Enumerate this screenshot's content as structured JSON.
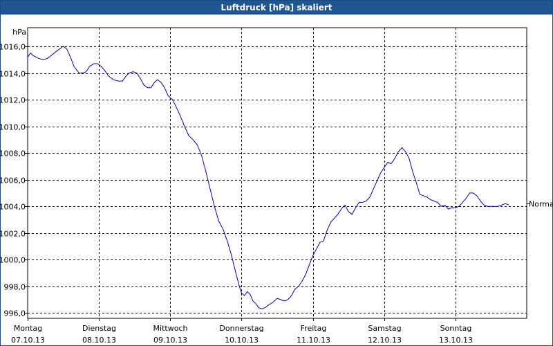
{
  "window": {
    "title": "Luftdruck [hPa] skaliert"
  },
  "chart_data": {
    "type": "line",
    "title": "Luftdruck [hPa] skaliert",
    "unit_label": "hPa",
    "ylim": [
      995.6,
      1017.4
    ],
    "xlim": [
      0,
      7.0
    ],
    "yticks": [
      996.0,
      998.0,
      1000.0,
      1002.0,
      1004.0,
      1006.0,
      1008.0,
      1010.0,
      1012.0,
      1014.0,
      1016.0
    ],
    "ytick_labels": [
      "996,0",
      "998,0",
      "1000,0",
      "1002,0",
      "1004,0",
      "1006,0",
      "1008,0",
      "1010,0",
      "1012,0",
      "1014,0",
      "1016,0"
    ],
    "x_labels": [
      {
        "day": "Montag",
        "date": "07.10.13"
      },
      {
        "day": "Dienstag",
        "date": "08.10.13"
      },
      {
        "day": "Mittwoch",
        "date": "09.10.13"
      },
      {
        "day": "Donnerstag",
        "date": "10.10.13"
      },
      {
        "day": "Freitag",
        "date": "11.10.13"
      },
      {
        "day": "Samstag",
        "date": "12.10.13"
      },
      {
        "day": "Sonntag",
        "date": "13.10.13"
      }
    ],
    "grid": true,
    "reference_line": {
      "label": "Normal",
      "value": 1004.2
    },
    "line_color": "#0000aa",
    "series": [
      {
        "values": [
          [
            0.0,
            1015.2
          ],
          [
            0.04,
            1015.5
          ],
          [
            0.08,
            1015.3
          ],
          [
            0.15,
            1015.1
          ],
          [
            0.22,
            1015.0
          ],
          [
            0.28,
            1015.1
          ],
          [
            0.35,
            1015.4
          ],
          [
            0.42,
            1015.7
          ],
          [
            0.5,
            1016.0
          ],
          [
            0.55,
            1015.8
          ],
          [
            0.6,
            1015.2
          ],
          [
            0.65,
            1014.5
          ],
          [
            0.72,
            1014.0
          ],
          [
            0.78,
            1014.0
          ],
          [
            0.82,
            1014.1
          ],
          [
            0.87,
            1014.5
          ],
          [
            0.93,
            1014.7
          ],
          [
            0.98,
            1014.7
          ],
          [
            1.03,
            1014.5
          ],
          [
            1.08,
            1014.2
          ],
          [
            1.13,
            1013.8
          ],
          [
            1.2,
            1013.5
          ],
          [
            1.27,
            1013.4
          ],
          [
            1.33,
            1013.4
          ],
          [
            1.37,
            1013.7
          ],
          [
            1.42,
            1014.0
          ],
          [
            1.48,
            1014.1
          ],
          [
            1.53,
            1014.0
          ],
          [
            1.58,
            1013.6
          ],
          [
            1.63,
            1013.1
          ],
          [
            1.68,
            1012.9
          ],
          [
            1.73,
            1012.9
          ],
          [
            1.78,
            1013.3
          ],
          [
            1.82,
            1013.5
          ],
          [
            1.87,
            1013.3
          ],
          [
            1.92,
            1012.9
          ],
          [
            1.97,
            1012.3
          ],
          [
            2.03,
            1012.0
          ],
          [
            2.08,
            1011.5
          ],
          [
            2.14,
            1010.8
          ],
          [
            2.2,
            1010.0
          ],
          [
            2.26,
            1009.3
          ],
          [
            2.32,
            1009.0
          ],
          [
            2.38,
            1008.6
          ],
          [
            2.44,
            1007.8
          ],
          [
            2.5,
            1006.6
          ],
          [
            2.56,
            1005.3
          ],
          [
            2.62,
            1004.0
          ],
          [
            2.68,
            1002.9
          ],
          [
            2.74,
            1002.3
          ],
          [
            2.8,
            1001.4
          ],
          [
            2.86,
            1000.3
          ],
          [
            2.92,
            999.0
          ],
          [
            2.97,
            998.0
          ],
          [
            3.0,
            997.5
          ],
          [
            3.04,
            997.3
          ],
          [
            3.08,
            997.6
          ],
          [
            3.12,
            997.4
          ],
          [
            3.16,
            996.9
          ],
          [
            3.2,
            996.7
          ],
          [
            3.24,
            996.4
          ],
          [
            3.28,
            996.3
          ],
          [
            3.33,
            996.4
          ],
          [
            3.38,
            996.6
          ],
          [
            3.44,
            996.8
          ],
          [
            3.5,
            997.1
          ],
          [
            3.55,
            997.0
          ],
          [
            3.6,
            996.9
          ],
          [
            3.65,
            997.0
          ],
          [
            3.7,
            997.3
          ],
          [
            3.75,
            997.8
          ],
          [
            3.8,
            998.0
          ],
          [
            3.85,
            998.4
          ],
          [
            3.9,
            998.9
          ],
          [
            3.95,
            999.6
          ],
          [
            4.0,
            1000.3
          ],
          [
            4.05,
            1000.8
          ],
          [
            4.1,
            1001.3
          ],
          [
            4.15,
            1001.4
          ],
          [
            4.2,
            1002.2
          ],
          [
            4.25,
            1002.8
          ],
          [
            4.3,
            1003.1
          ],
          [
            4.35,
            1003.4
          ],
          [
            4.4,
            1003.8
          ],
          [
            4.45,
            1004.1
          ],
          [
            4.5,
            1003.6
          ],
          [
            4.55,
            1003.4
          ],
          [
            4.6,
            1003.9
          ],
          [
            4.65,
            1004.3
          ],
          [
            4.7,
            1004.3
          ],
          [
            4.75,
            1004.4
          ],
          [
            4.8,
            1004.7
          ],
          [
            4.85,
            1005.3
          ],
          [
            4.9,
            1005.9
          ],
          [
            4.95,
            1006.5
          ],
          [
            5.0,
            1006.9
          ],
          [
            5.05,
            1007.3
          ],
          [
            5.1,
            1007.2
          ],
          [
            5.15,
            1007.6
          ],
          [
            5.2,
            1008.1
          ],
          [
            5.25,
            1008.4
          ],
          [
            5.3,
            1008.1
          ],
          [
            5.35,
            1007.6
          ],
          [
            5.4,
            1006.6
          ],
          [
            5.45,
            1005.8
          ],
          [
            5.5,
            1004.9
          ],
          [
            5.55,
            1004.8
          ],
          [
            5.6,
            1004.7
          ],
          [
            5.65,
            1004.5
          ],
          [
            5.7,
            1004.4
          ],
          [
            5.75,
            1004.3
          ],
          [
            5.8,
            1004.0
          ],
          [
            5.85,
            1004.1
          ],
          [
            5.9,
            1003.8
          ],
          [
            5.95,
            1003.9
          ],
          [
            6.0,
            1003.9
          ],
          [
            6.05,
            1004.0
          ],
          [
            6.1,
            1004.3
          ],
          [
            6.15,
            1004.6
          ],
          [
            6.2,
            1005.0
          ],
          [
            6.25,
            1005.0
          ],
          [
            6.3,
            1004.8
          ],
          [
            6.35,
            1004.4
          ],
          [
            6.4,
            1004.1
          ],
          [
            6.45,
            1004.0
          ],
          [
            6.5,
            1004.0
          ],
          [
            6.55,
            1004.0
          ],
          [
            6.6,
            1004.0
          ],
          [
            6.65,
            1004.1
          ],
          [
            6.7,
            1004.2
          ],
          [
            6.75,
            1004.1
          ]
        ]
      }
    ]
  }
}
